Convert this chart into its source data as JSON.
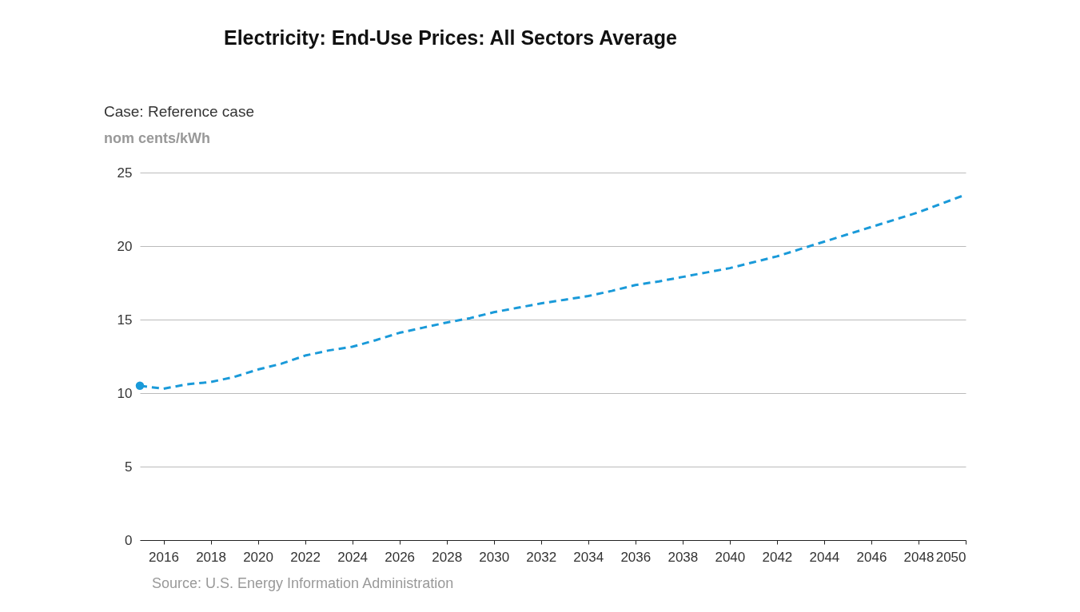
{
  "chart_data": {
    "type": "line",
    "title": "Electricity: End-Use Prices: All Sectors Average",
    "subtitle": "Case: Reference case",
    "ylabel": "nom cents/kWh",
    "xlim": [
      2015,
      2050
    ],
    "xticks": [
      2016,
      2018,
      2020,
      2022,
      2024,
      2026,
      2028,
      2030,
      2032,
      2034,
      2036,
      2038,
      2040,
      2042,
      2044,
      2046,
      2048,
      2050
    ],
    "ylim": [
      0,
      25
    ],
    "yticks": [
      0,
      5,
      10,
      15,
      20,
      25
    ],
    "grid": "y",
    "series": [
      {
        "type": "scatter",
        "marker": "circle",
        "color": "#1a9ad9",
        "x": [
          2015
        ],
        "values": [
          10.5
        ]
      },
      {
        "line_style": "dashed",
        "marker": "none",
        "color": "#1a9ad9",
        "x": [
          2015,
          2016,
          2017,
          2018,
          2019,
          2020,
          2021,
          2022,
          2023,
          2024,
          2025,
          2026,
          2027,
          2028,
          2029,
          2030,
          2031,
          2032,
          2033,
          2034,
          2035,
          2036,
          2037,
          2038,
          2039,
          2040,
          2041,
          2042,
          2043,
          2044,
          2045,
          2046,
          2047,
          2048,
          2049,
          2050
        ],
        "values": [
          10.5,
          10.3,
          10.6,
          10.75,
          11.1,
          11.6,
          12.0,
          12.55,
          12.9,
          13.15,
          13.6,
          14.1,
          14.45,
          14.8,
          15.1,
          15.5,
          15.8,
          16.1,
          16.35,
          16.6,
          16.95,
          17.35,
          17.6,
          17.9,
          18.2,
          18.5,
          18.9,
          19.3,
          19.8,
          20.3,
          20.8,
          21.3,
          21.8,
          22.3,
          22.9,
          23.5
        ]
      }
    ],
    "annotations": [
      "Source: U.S. Energy Information Administration"
    ]
  }
}
